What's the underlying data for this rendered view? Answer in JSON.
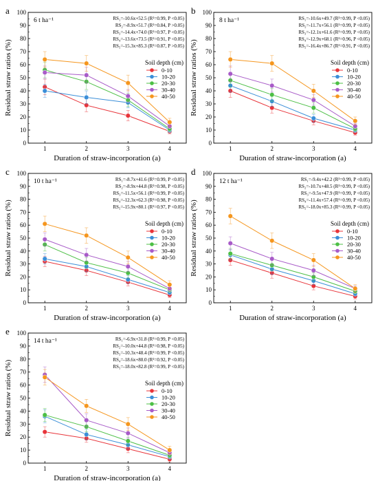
{
  "chart_data": [
    {
      "type": "line",
      "panel_label": "a",
      "inner_label": "6 t ha⁻¹",
      "xlabel": "Duration of straw-incorporation (a)",
      "ylabel": "Residual straw ratios (%)",
      "xlim": [
        0.6,
        4.4
      ],
      "ylim": [
        0,
        100
      ],
      "x_ticks": [
        1,
        2,
        3,
        4
      ],
      "y_ticks": [
        0,
        10,
        20,
        30,
        40,
        50,
        60,
        70,
        80,
        90,
        100
      ],
      "legend_title": "Soil depth (cm)",
      "equations": [
        "RS₁=-10.6x+52.5 (R²=0.99, P <0.05)",
        "RS₂=-8.9x+51.7 (R²=0.84, P >0.05)",
        "RS₃=-14.4x+74.0 (R²=0.97, P <0.05)",
        "RS₄=-13.6x+73.5 (R²=0.91, P <0.05)",
        "RS₅=-15.3x+85.3 (R²=0.87, P >0.05)"
      ],
      "x": [
        1,
        2,
        3,
        4
      ],
      "series": [
        {
          "name": "0-10",
          "values": [
            43,
            29,
            21,
            9
          ],
          "errors": [
            6,
            5,
            4,
            2
          ]
        },
        {
          "name": "10-20",
          "values": [
            40,
            35,
            31,
            10
          ],
          "errors": [
            5,
            5,
            4,
            2
          ]
        },
        {
          "name": "20-30",
          "values": [
            56,
            47,
            33,
            11
          ],
          "errors": [
            6,
            6,
            5,
            2
          ]
        },
        {
          "name": "30-40",
          "values": [
            54,
            52,
            36,
            13
          ],
          "errors": [
            5,
            6,
            5,
            2
          ]
        },
        {
          "name": "40-50",
          "values": [
            64,
            61,
            46,
            16
          ],
          "errors": [
            6,
            6,
            6,
            3
          ]
        }
      ]
    },
    {
      "type": "line",
      "panel_label": "b",
      "inner_label": "8 t ha⁻¹",
      "xlabel": "Duration of straw-incorporation (a)",
      "ylabel": "Residual straw ratios (%)",
      "xlim": [
        0.6,
        4.4
      ],
      "ylim": [
        0,
        100
      ],
      "x_ticks": [
        1,
        2,
        3,
        4
      ],
      "y_ticks": [
        0,
        10,
        20,
        30,
        40,
        50,
        60,
        70,
        80,
        90,
        100
      ],
      "legend_title": "Soil depth (cm)",
      "equations": [
        "RS₁=-10.6x+49.7 (R²=0.99, P <0.05)",
        "RS₂=-11.7x+56.1 (R²=0.99, P <0.05)",
        "RS₃=-12.1x+61.6 (R²=0.99, P <0.05)",
        "RS₄=-12.9x+68.1 (R²=0.96, P <0.05)",
        "RS₅=-16.4x+86.7 (R²=0.91, P <0.05)"
      ],
      "x": [
        1,
        2,
        3,
        4
      ],
      "series": [
        {
          "name": "0-10",
          "values": [
            40,
            27,
            17,
            8
          ],
          "errors": [
            5,
            4,
            3,
            2
          ]
        },
        {
          "name": "10-20",
          "values": [
            44,
            32,
            19,
            10
          ],
          "errors": [
            5,
            4,
            3,
            2
          ]
        },
        {
          "name": "20-30",
          "values": [
            48,
            37,
            27,
            11
          ],
          "errors": [
            5,
            5,
            4,
            2
          ]
        },
        {
          "name": "30-40",
          "values": [
            53,
            44,
            33,
            13
          ],
          "errors": [
            6,
            5,
            4,
            2
          ]
        },
        {
          "name": "40-50",
          "values": [
            64,
            61,
            40,
            17
          ],
          "errors": [
            6,
            6,
            5,
            3
          ]
        }
      ]
    },
    {
      "type": "line",
      "panel_label": "c",
      "inner_label": "10 t ha⁻¹",
      "xlabel": "Duration of straw-incorporation (a)",
      "ylabel": "Residual straw ratios (%)",
      "xlim": [
        0.6,
        4.4
      ],
      "ylim": [
        0,
        100
      ],
      "x_ticks": [
        1,
        2,
        3,
        4
      ],
      "y_ticks": [
        0,
        10,
        20,
        30,
        40,
        50,
        60,
        70,
        80,
        90,
        100
      ],
      "legend_title": "Soil depth (cm)",
      "equations": [
        "RS₁=-8.7x+41.6 (R²=0.99, P <0.05)",
        "RS₂=-8.9x+44.8 (R²=0.98, P <0.05)",
        "RS₃=-11.5x+56.1 (R²=0.99, P <0.05)",
        "RS₄=-12.3x+62.3 (R²=0.98, P <0.05)",
        "RS₅=-15.9x+80.1 (R²=0.97, P <0.05)"
      ],
      "x": [
        1,
        2,
        3,
        4
      ],
      "series": [
        {
          "name": "0-10",
          "values": [
            32,
            25,
            16,
            6
          ],
          "errors": [
            4,
            4,
            3,
            2
          ]
        },
        {
          "name": "10-20",
          "values": [
            34,
            28,
            18,
            8
          ],
          "errors": [
            4,
            4,
            3,
            2
          ]
        },
        {
          "name": "20-30",
          "values": [
            45,
            31,
            23,
            10
          ],
          "errors": [
            5,
            4,
            4,
            2
          ]
        },
        {
          "name": "30-40",
          "values": [
            49,
            37,
            28,
            11
          ],
          "errors": [
            5,
            5,
            4,
            2
          ]
        },
        {
          "name": "40-50",
          "values": [
            61,
            52,
            35,
            14
          ],
          "errors": [
            6,
            6,
            5,
            3
          ]
        }
      ]
    },
    {
      "type": "line",
      "panel_label": "d",
      "inner_label": "12 t ha⁻¹",
      "xlabel": "Duration of straw-incorporation (a)",
      "ylabel": "Residual straw ratios (%)",
      "xlim": [
        0.6,
        4.4
      ],
      "ylim": [
        0,
        100
      ],
      "x_ticks": [
        1,
        2,
        3,
        4
      ],
      "y_ticks": [
        0,
        10,
        20,
        30,
        40,
        50,
        60,
        70,
        80,
        90,
        100
      ],
      "legend_title": "Soil depth (cm)",
      "equations": [
        "RS₁=-9.4x+42.2 (R²=0.99, P <0.05)",
        "RS₂=-10.7x+48.5 (R²=0.99, P <0.05)",
        "RS₃=-9.5x+47.9 (R²=0.99, P <0.05)",
        "RS₄=-11.4x+57.4 (R²=0.99, P <0.05)",
        "RS₅=-18.0x+85.3 (R²=0.99, P <0.05)"
      ],
      "x": [
        1,
        2,
        3,
        4
      ],
      "series": [
        {
          "name": "0-10",
          "values": [
            33,
            23,
            13,
            5
          ],
          "errors": [
            4,
            4,
            3,
            2
          ]
        },
        {
          "name": "10-20",
          "values": [
            37,
            26,
            17,
            7
          ],
          "errors": [
            4,
            4,
            3,
            2
          ]
        },
        {
          "name": "20-30",
          "values": [
            38,
            29,
            20,
            9
          ],
          "errors": [
            4,
            4,
            3,
            2
          ]
        },
        {
          "name": "30-40",
          "values": [
            46,
            34,
            25,
            11
          ],
          "errors": [
            5,
            5,
            4,
            2
          ]
        },
        {
          "name": "40-50",
          "values": [
            67,
            48,
            33,
            11
          ],
          "errors": [
            6,
            6,
            5,
            3
          ]
        }
      ]
    },
    {
      "type": "line",
      "panel_label": "e",
      "inner_label": "14 t ha⁻¹",
      "xlabel": "Duration of straw-incorporation (a)",
      "ylabel": "Residual straw ratios (%)",
      "xlim": [
        0.6,
        4.4
      ],
      "ylim": [
        0,
        100
      ],
      "x_ticks": [
        1,
        2,
        3,
        4
      ],
      "y_ticks": [
        0,
        10,
        20,
        30,
        40,
        50,
        60,
        70,
        80,
        90,
        100
      ],
      "legend_title": "Soil depth (cm)",
      "equations": [
        "RS₁=-6.9x+31.8 (R²=0.99, P <0.05)",
        "RS₂=-10.0x+44.8 (R²=0.98, P <0.05)",
        "RS₃=-10.3x+48.4 (R²=0.99, P <0.05)",
        "RS₄=-18.6x+80.0 (R²=0.92, P <0.05)",
        "RS₅=-18.0x+82.8 (R²=0.99, P <0.05)"
      ],
      "x": [
        1,
        2,
        3,
        4
      ],
      "series": [
        {
          "name": "0-10",
          "values": [
            24,
            19,
            11,
            3
          ],
          "errors": [
            4,
            3,
            3,
            2
          ]
        },
        {
          "name": "10-20",
          "values": [
            36,
            22,
            14,
            5
          ],
          "errors": [
            5,
            4,
            3,
            2
          ]
        },
        {
          "name": "20-30",
          "values": [
            37,
            28,
            17,
            6
          ],
          "errors": [
            5,
            4,
            3,
            2
          ]
        },
        {
          "name": "30-40",
          "values": [
            68,
            33,
            23,
            8
          ],
          "errors": [
            6,
            5,
            4,
            2
          ]
        },
        {
          "name": "40-50",
          "values": [
            66,
            44,
            30,
            10
          ],
          "errors": [
            6,
            5,
            5,
            3
          ]
        }
      ]
    }
  ],
  "series_colors": [
    "#e8343a",
    "#3a8ed8",
    "#4cbf45",
    "#a85bc8",
    "#f5961e"
  ]
}
